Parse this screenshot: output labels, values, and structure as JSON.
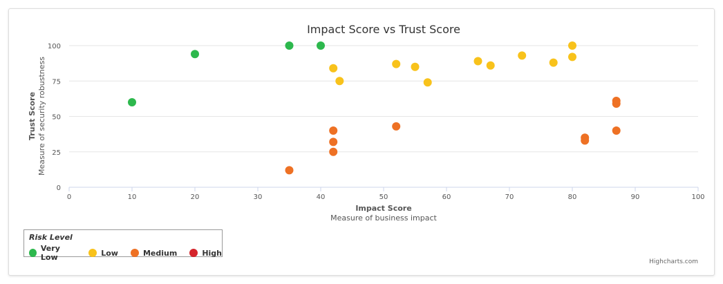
{
  "chart_data": {
    "type": "scatter",
    "title": "Impact Score vs Trust Score",
    "xlabel": "Impact Score",
    "xsublabel": "Measure of business impact",
    "ylabel": "Trust Score",
    "ysublabel": "Measure of security robustness",
    "xlim": [
      0,
      100
    ],
    "ylim": [
      0,
      100
    ],
    "xticks": [
      0,
      10,
      20,
      30,
      40,
      50,
      60,
      70,
      80,
      90,
      100
    ],
    "yticks": [
      0,
      25,
      50,
      75,
      100
    ],
    "grid": true,
    "legend_title": "Risk Level",
    "legend_placement": "bottom-left",
    "series": [
      {
        "name": "Very Low",
        "color": "#2db84d",
        "points": [
          [
            10,
            60
          ],
          [
            20,
            94
          ],
          [
            35,
            100
          ],
          [
            40,
            100
          ]
        ]
      },
      {
        "name": "Low",
        "color": "#f8c21b",
        "points": [
          [
            42,
            84
          ],
          [
            43,
            75
          ],
          [
            52,
            87
          ],
          [
            55,
            85
          ],
          [
            57,
            74
          ],
          [
            65,
            89
          ],
          [
            67,
            86
          ],
          [
            72,
            93
          ],
          [
            77,
            88
          ],
          [
            80,
            100
          ],
          [
            80,
            92
          ]
        ]
      },
      {
        "name": "Medium",
        "color": "#ee7124",
        "points": [
          [
            35,
            12
          ],
          [
            42,
            40
          ],
          [
            42,
            32
          ],
          [
            42,
            25
          ],
          [
            52,
            43
          ],
          [
            82,
            35
          ],
          [
            82,
            33
          ],
          [
            87,
            61
          ],
          [
            87,
            59
          ],
          [
            87,
            40
          ]
        ]
      },
      {
        "name": "High",
        "color": "#d4242b",
        "points": []
      }
    ]
  },
  "credit": "Highcharts.com"
}
